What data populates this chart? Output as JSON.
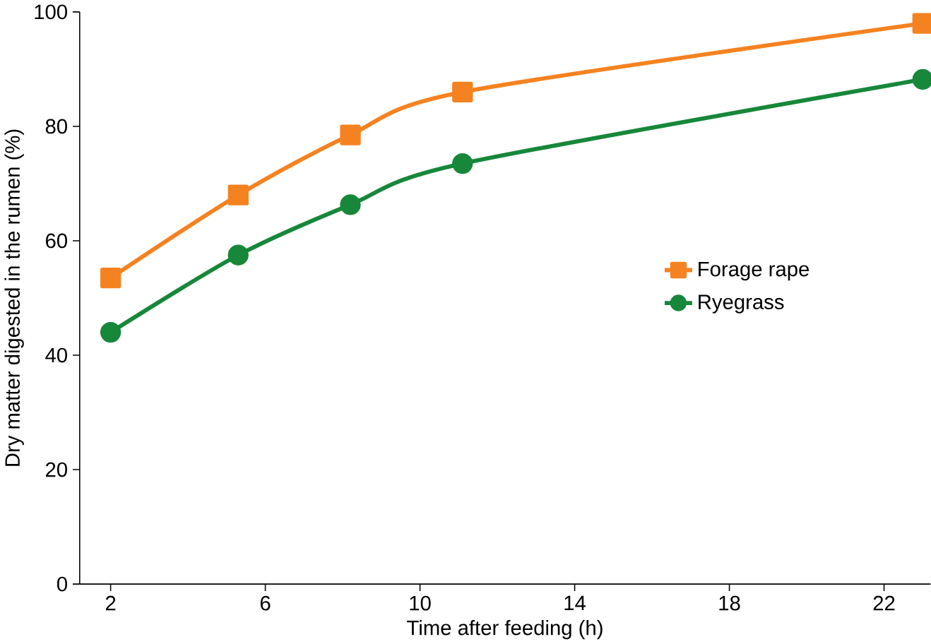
{
  "chart_data": {
    "type": "line",
    "xlabel": "Time after feeding (h)",
    "ylabel": "Dry matter digested in the rumen (%)",
    "xlim": [
      1.2,
      23.2
    ],
    "ylim": [
      0,
      100
    ],
    "xticks": [
      2,
      6,
      10,
      14,
      18,
      22
    ],
    "yticks": [
      0,
      20,
      40,
      60,
      80,
      100
    ],
    "legend": "right",
    "grid": false,
    "line_style": "solid",
    "series": [
      {
        "name": "Forage rape",
        "color": "#f58220",
        "marker": "square",
        "x": [
          2,
          5.3,
          8.2,
          11.1,
          23
        ],
        "values": [
          53.5,
          68,
          78.5,
          86,
          98
        ]
      },
      {
        "name": "Ryegrass",
        "color": "#17873a",
        "marker": "circle",
        "x": [
          2,
          5.3,
          8.2,
          11.1,
          23
        ],
        "values": [
          44,
          57.5,
          66.3,
          73.5,
          88.2
        ]
      }
    ]
  }
}
